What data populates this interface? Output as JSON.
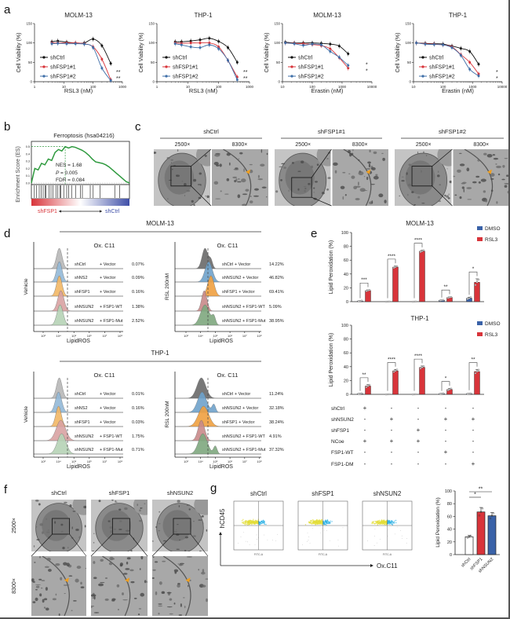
{
  "panel_labels": {
    "a": "a",
    "b": "b",
    "c": "c",
    "d": "d",
    "e": "e",
    "f": "f",
    "g": "g"
  },
  "chart_data": [
    {
      "type": "line",
      "panel": "a",
      "title": "MOLM-13",
      "xlabel": "RSL3 (nM)",
      "ylabel": "Cell Viability (%)",
      "xscale": "log",
      "xlim": [
        1,
        1000
      ],
      "ylim": [
        0,
        150
      ],
      "xticks": [
        "1",
        "10",
        "100",
        "1000"
      ],
      "yticks": [
        "0",
        "50",
        "100",
        "150"
      ],
      "legend": "left",
      "series": [
        {
          "name": "shCtrl",
          "color": "#111111",
          "x": [
            3.9,
            6.25,
            12.5,
            25,
            50,
            100,
            200,
            400
          ],
          "y": [
            103,
            105,
            102,
            100,
            100,
            110,
            93,
            47
          ]
        },
        {
          "name": "shFSP1#1",
          "color": "#d8343a",
          "x": [
            3.9,
            6.25,
            12.5,
            25,
            50,
            100,
            200,
            400
          ],
          "y": [
            100,
            100,
            100,
            100,
            98,
            90,
            58,
            5
          ]
        },
        {
          "name": "shFSP1#2",
          "color": "#3f6fa8",
          "x": [
            3.9,
            6.25,
            12.5,
            25,
            50,
            100,
            200,
            400
          ],
          "y": [
            98,
            99,
            98,
            98,
            97,
            88,
            35,
            3
          ]
        }
      ],
      "significance": [
        "**",
        "**"
      ]
    },
    {
      "type": "line",
      "panel": "a",
      "title": "THP-1",
      "xlabel": "RSL3 (nM)",
      "ylabel": "Cell Viability (%)",
      "xscale": "log",
      "xlim": [
        1,
        1000
      ],
      "ylim": [
        0,
        150
      ],
      "xticks": [
        "1",
        "10",
        "100",
        "1000"
      ],
      "yticks": [
        "0",
        "50",
        "100",
        "150"
      ],
      "legend": "left",
      "series": [
        {
          "name": "shCtrl",
          "color": "#111111",
          "x": [
            3.9,
            6.25,
            12.5,
            25,
            50,
            100,
            200,
            400
          ],
          "y": [
            103,
            103,
            105,
            108,
            112,
            104,
            88,
            50
          ]
        },
        {
          "name": "shFSP1#1",
          "color": "#d8343a",
          "x": [
            3.9,
            6.25,
            12.5,
            25,
            50,
            100,
            200,
            400
          ],
          "y": [
            100,
            99,
            100,
            100,
            100,
            90,
            55,
            12
          ]
        },
        {
          "name": "shFSP1#2",
          "color": "#3f6fa8",
          "x": [
            3.9,
            6.25,
            12.5,
            25,
            50,
            100,
            200,
            400
          ],
          "y": [
            98,
            95,
            90,
            88,
            95,
            85,
            55,
            5
          ]
        }
      ],
      "significance": [
        "**",
        "**"
      ]
    },
    {
      "type": "line",
      "panel": "a",
      "title": "MOLM-13",
      "xlabel": "Erastin (nM)",
      "ylabel": "Cell Viability (%)",
      "xscale": "log",
      "xlim": [
        10,
        10000
      ],
      "ylim": [
        0,
        150
      ],
      "xticks": [
        "10",
        "100",
        "1000",
        "10000"
      ],
      "yticks": [
        "0",
        "50",
        "100",
        "150"
      ],
      "legend": "left",
      "series": [
        {
          "name": "shCtrl",
          "color": "#111111",
          "x": [
            12.5,
            25,
            50,
            100,
            200,
            400,
            800,
            1600
          ],
          "y": [
            102,
            100,
            100,
            100,
            99,
            97,
            92,
            72
          ]
        },
        {
          "name": "shFSP1#1",
          "color": "#d8343a",
          "x": [
            12.5,
            25,
            50,
            100,
            200,
            400,
            800,
            1600
          ],
          "y": [
            100,
            99,
            98,
            96,
            93,
            85,
            62,
            35
          ]
        },
        {
          "name": "shFSP1#2",
          "color": "#3f6fa8",
          "x": [
            12.5,
            25,
            50,
            100,
            200,
            400,
            800,
            1600
          ],
          "y": [
            100,
            98,
            94,
            97,
            95,
            78,
            63,
            42
          ]
        }
      ],
      "significance": [
        "*",
        "*"
      ]
    },
    {
      "type": "line",
      "panel": "a",
      "title": "THP-1",
      "xlabel": "Erastin (nM)",
      "ylabel": "Cell Viability (%)",
      "xscale": "log",
      "xlim": [
        10,
        10000
      ],
      "ylim": [
        0,
        150
      ],
      "xticks": [
        "10",
        "100",
        "1000",
        "10000"
      ],
      "yticks": [
        "0",
        "50",
        "100",
        "150"
      ],
      "legend": "left",
      "series": [
        {
          "name": "shCtrl",
          "color": "#111111",
          "x": [
            12.5,
            25,
            50,
            100,
            200,
            400,
            800,
            1600
          ],
          "y": [
            100,
            99,
            98,
            97,
            92,
            86,
            78,
            45
          ]
        },
        {
          "name": "shFSP1#1",
          "color": "#d8343a",
          "x": [
            12.5,
            25,
            50,
            100,
            200,
            400,
            800,
            1600
          ],
          "y": [
            100,
            98,
            97,
            95,
            90,
            70,
            50,
            20
          ]
        },
        {
          "name": "shFSP1#2",
          "color": "#3f6fa8",
          "x": [
            12.5,
            25,
            50,
            100,
            200,
            400,
            800,
            1600
          ],
          "y": [
            100,
            97,
            96,
            95,
            88,
            68,
            32,
            15
          ]
        }
      ],
      "significance": [
        "*",
        "*"
      ]
    },
    {
      "type": "line",
      "panel": "b",
      "title": "Ferroptosis (hsa04216)",
      "ylabel": "Enrichment Score (ES)",
      "ylim": [
        0,
        0.55
      ],
      "yticks": [
        "0.0",
        "0.1",
        "0.2",
        "0.3",
        "0.4",
        "0.5"
      ],
      "color": "#2e9a3e",
      "es_curve": [
        0,
        0.2,
        0.18,
        0.27,
        0.25,
        0.33,
        0.31,
        0.42,
        0.46,
        0.44,
        0.5,
        0.48,
        0.5,
        0.49,
        0.47,
        0.45,
        0.42,
        0.38,
        0.33,
        0.29,
        0.28,
        0.27,
        0.25,
        0.22,
        0.18,
        0.14,
        0.1,
        0.06,
        0.02,
        0
      ],
      "hit_positions": [
        0.03,
        0.05,
        0.08,
        0.1,
        0.12,
        0.14,
        0.15,
        0.18,
        0.2,
        0.22,
        0.25,
        0.27,
        0.29,
        0.3,
        0.33,
        0.36,
        0.38,
        0.41,
        0.45,
        0.5,
        0.52,
        0.6,
        0.63,
        0.7,
        0.85,
        0.9
      ],
      "stats": {
        "nes": "NES = 1.68",
        "p_label": "P",
        "p_value": " = 0.005",
        "fdr": "FDR = 0.084"
      },
      "left_label": "shFSP1",
      "right_label": "shCtrl",
      "left_color": "#d8343a",
      "right_color": "#3f4fa8"
    },
    {
      "type": "bar",
      "panel": "e",
      "title": "MOLM-13",
      "ylabel": "Lipid Peroxidation (%)",
      "ylim": [
        0,
        100
      ],
      "yticks": [
        "0",
        "20",
        "40",
        "60",
        "80",
        "100"
      ],
      "legend": "top-right",
      "series": [
        {
          "name": "DMSO",
          "color": "#3a62a8",
          "values": [
            1,
            0,
            0,
            2,
            5
          ],
          "err": [
            0.5,
            0.2,
            0.2,
            0.5,
            1.5
          ]
        },
        {
          "name": "RSL3",
          "color": "#d8343a",
          "values": [
            16,
            50,
            73,
            6,
            28
          ],
          "err": [
            1,
            1.5,
            1.5,
            0.8,
            5
          ]
        }
      ],
      "significance": [
        "***",
        "****",
        "****",
        "**",
        "*"
      ]
    },
    {
      "type": "bar",
      "panel": "e",
      "title": "THP-1",
      "ylabel": "Lipid Peroxidation (%)",
      "ylim": [
        0,
        100
      ],
      "yticks": [
        "0",
        "20",
        "40",
        "60",
        "80",
        "100"
      ],
      "legend": "top-right",
      "series": [
        {
          "name": "DMSO",
          "color": "#3a62a8",
          "values": [
            1,
            0,
            0,
            1,
            1
          ],
          "err": [
            0.5,
            0.2,
            0.2,
            0.5,
            0.3
          ]
        },
        {
          "name": "RSL3",
          "color": "#d8343a",
          "values": [
            12,
            34,
            39,
            7,
            33
          ],
          "err": [
            2,
            2,
            2,
            1.5,
            3
          ]
        }
      ],
      "significance": [
        "**",
        "****",
        "****",
        "*",
        "**"
      ]
    },
    {
      "type": "bar",
      "panel": "g",
      "ylabel": "Lipid Peroxidation (%)",
      "ylim": [
        0,
        100
      ],
      "yticks": [
        "0",
        "20",
        "40",
        "60",
        "80",
        "100"
      ],
      "categories": [
        "shCtrl",
        "shFSP1",
        "shNSUN2"
      ],
      "values": [
        28,
        67,
        61
      ],
      "err": [
        2,
        7,
        5
      ],
      "colors": [
        "#ffffff",
        "#d8343a",
        "#3a62a8"
      ],
      "significance": [
        {
          "pair": [
            0,
            1
          ],
          "label": "*"
        },
        {
          "pair": [
            0,
            2
          ],
          "label": "**"
        }
      ]
    }
  ],
  "panel_e_table": {
    "rows": [
      {
        "label": "shCtrl",
        "values": [
          "+",
          "-",
          "-",
          "-",
          "-"
        ]
      },
      {
        "label": "shNSUN2",
        "values": [
          "-",
          "+",
          "-",
          "+",
          "+"
        ]
      },
      {
        "label": "shFSP1",
        "values": [
          "-",
          "-",
          "+",
          "-",
          "-"
        ]
      },
      {
        "label": "NCoe",
        "values": [
          "+",
          "+",
          "+",
          "-",
          "-"
        ]
      },
      {
        "label": "FSP1-WT",
        "values": [
          "-",
          "-",
          "-",
          "+",
          "-"
        ]
      },
      {
        "label": "FSP1-DM",
        "values": [
          "-",
          "-",
          "-",
          "-",
          "+"
        ]
      }
    ]
  },
  "panel_c": {
    "groups": [
      {
        "label": "shCtrl"
      },
      {
        "label": "shFSP1#1"
      },
      {
        "label": "shFSP1#2"
      }
    ],
    "mag_low": "2500×",
    "mag_high": "8300×",
    "arrow_color": "#f0a020"
  },
  "panel_d": {
    "blocks": [
      {
        "cell_line": "MOLM-13",
        "left": {
          "condition": "Vehicle",
          "title": "Ox. C11",
          "xlabel": "LipidROS",
          "rows": [
            {
              "sh": "shCtrl",
              "vec": "+ Vector",
              "pct": "0.07%",
              "peak": 4.05,
              "width": 0.18
            },
            {
              "sh": "shNS2",
              "vec": "+ Vector",
              "pct": "0.09%",
              "peak": 4.05,
              "width": 0.18
            },
            {
              "sh": "shFSP1",
              "vec": "+ Vector",
              "pct": "0.16%",
              "peak": 4.05,
              "width": 0.18
            },
            {
              "sh": "shNSUN2",
              "vec": "+ FSP1-WT",
              "pct": "1.38%",
              "peak": 4.15,
              "width": 0.2
            },
            {
              "sh": "shNSUN2",
              "vec": "+ FSP1-Mut",
              "pct": "2.52%",
              "peak": 4.1,
              "width": 0.2
            }
          ]
        },
        "right": {
          "condition": "RSL 200nM",
          "title": "Ox. C11",
          "xlabel": "LipidROS",
          "rows": [
            {
              "label": "shCtrl      + Vector",
              "pct": "14.22%",
              "peak": 4.3,
              "width": 0.2,
              "shoulder": 4.7
            },
            {
              "label": "shNSUN2 + Vector",
              "pct": "46.82%",
              "peak": 4.55,
              "width": 0.25
            },
            {
              "label": "shFSP1     + Vector",
              "pct": "69.41%",
              "peak": 4.7,
              "width": 0.22
            },
            {
              "label": "shNSUN2 + FSP1-WT",
              "pct": "5.09%",
              "peak": 4.25,
              "width": 0.18
            },
            {
              "label": "shNSUN2 + FSP1-Mut",
              "pct": "38.95%",
              "peak": 4.3,
              "width": 0.3,
              "shoulder": 4.9
            }
          ]
        }
      },
      {
        "cell_line": "THP-1",
        "left": {
          "condition": "Vehicle",
          "title": "Ox. C11",
          "xlabel": "LipidROS",
          "rows": [
            {
              "sh": "shCtrl",
              "vec": "+ Vector",
              "pct": "0.01%",
              "peak": 4.05,
              "width": 0.18
            },
            {
              "sh": "shNS2",
              "vec": "+ Vector",
              "pct": "0.16%",
              "peak": 4.0,
              "width": 0.2
            },
            {
              "sh": "shFSP1",
              "vec": "+ Vector",
              "pct": "0.03%",
              "peak": 4.0,
              "width": 0.18
            },
            {
              "sh": "shNSUN2",
              "vec": "+ FSP1-WT",
              "pct": "1.75%",
              "peak": 4.15,
              "width": 0.3
            },
            {
              "sh": "shNSUN2",
              "vec": "+ FSP1-Mut",
              "pct": "0.71%",
              "peak": 4.2,
              "width": 0.28
            }
          ]
        },
        "right": {
          "condition": "RSL 200nM",
          "title": "Ox. C11",
          "xlabel": "LipidROS",
          "rows": [
            {
              "label": "shCtrl      + Vector",
              "pct": "11.24%",
              "peak": 4.05,
              "width": 0.3
            },
            {
              "label": "shNSUN2 + Vector",
              "pct": "32.18%",
              "peak": 4.1,
              "width": 0.3,
              "shoulder": 4.9
            },
            {
              "label": "shFSP1     + Vector",
              "pct": "38.24%",
              "peak": 4.2,
              "width": 0.35
            },
            {
              "label": "shNSUN2 + FSP1-WT",
              "pct": "4.91%",
              "peak": 4.05,
              "width": 0.22
            },
            {
              "label": "shNSUN2 + FSP1-Mut",
              "pct": "37.32%",
              "peak": 4.15,
              "width": 0.3,
              "shoulder": 5.0
            }
          ]
        }
      }
    ],
    "xticks": [
      "10³",
      "10⁴",
      "10⁵",
      "10⁶",
      "10⁷",
      "10⁸"
    ],
    "left_colors": [
      "#b8b8b8",
      "#93b9d8",
      "#f2b766",
      "#d9a2a2",
      "#b6d3b6"
    ],
    "right_colors": [
      "#6a6a6a",
      "#6fa3cc",
      "#f0a040",
      "#c98a8a",
      "#7fa87f"
    ]
  },
  "panel_f": {
    "columns": [
      {
        "label": "shCtrl"
      },
      {
        "label": "shFSP1"
      },
      {
        "label": "shNSUN2"
      }
    ],
    "rows": [
      {
        "label": "2500×"
      },
      {
        "label": "8300×"
      }
    ],
    "arrow_color": "#f0a020"
  },
  "panel_g": {
    "plots": [
      {
        "title": "shCtrl",
        "cyan": 0.25
      },
      {
        "title": "shFSP1",
        "cyan": 0.5
      },
      {
        "title": "shNSUN2",
        "cyan": 0.45
      }
    ],
    "x_axis_small": "FITC-A",
    "y_axis": "hCD45",
    "x_axis": "Ox.C11",
    "dot_colors": [
      "#e3de3a",
      "#31b3e6"
    ]
  }
}
